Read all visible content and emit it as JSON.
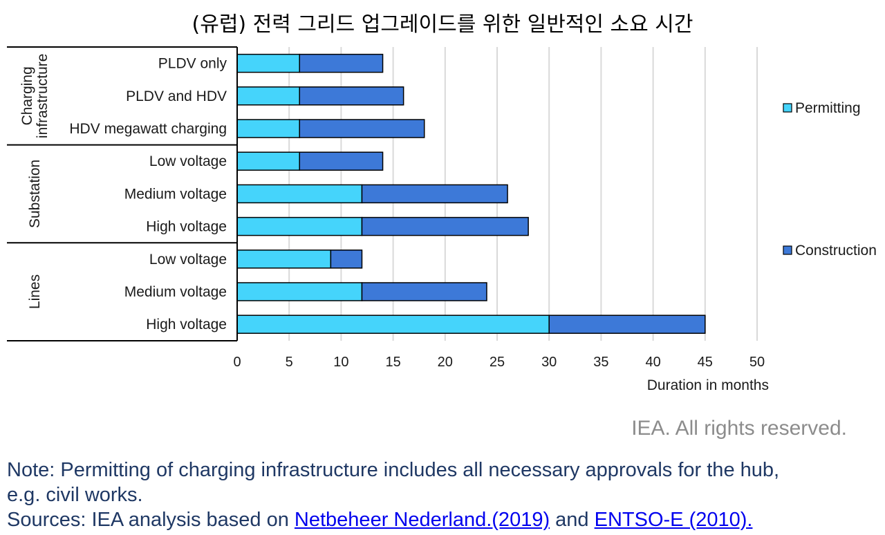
{
  "chart_data": {
    "type": "bar",
    "orientation": "horizontal",
    "stacked": true,
    "title": "(유럽) 전력 그리드 업그레이드를 위한 일반적인 소요 시간",
    "xlabel": "Duration in months",
    "xlim": [
      0,
      50
    ],
    "xticks": [
      0,
      5,
      10,
      15,
      20,
      25,
      30,
      35,
      40,
      45,
      50
    ],
    "grid": "vertical",
    "legend_position": "right",
    "groups": [
      {
        "name": "Charging infrastructure",
        "name_lines": [
          "Charging",
          "infrastructure"
        ],
        "categories": [
          "PLDV only",
          "PLDV and HDV",
          "HDV megawatt charging"
        ]
      },
      {
        "name": "Substation",
        "name_lines": [
          "Substation"
        ],
        "categories": [
          "Low voltage",
          "Medium voltage",
          "High voltage"
        ]
      },
      {
        "name": "Lines",
        "name_lines": [
          "Lines"
        ],
        "categories": [
          "Low voltage",
          "Medium voltage",
          "High voltage"
        ]
      }
    ],
    "series": [
      {
        "name": "Permitting",
        "color": "#45d4fb",
        "values": [
          6,
          6,
          6,
          6,
          12,
          12,
          9,
          12,
          30
        ]
      },
      {
        "name": "Construction",
        "color": "#3d79d8",
        "values": [
          8,
          10,
          12,
          8,
          14,
          16,
          3,
          12,
          15
        ]
      }
    ]
  },
  "footer": {
    "credit": "IEA. All rights reserved.",
    "note_line1": "Note: Permitting of charging infrastructure includes all necessary approvals for the hub,",
    "note_line2": "e.g. civil works.",
    "sources_prefix": "Sources: IEA analysis based on ",
    "source_link1": "Netbeheer Nederland.(2019)",
    "sources_and": " and ",
    "source_link2": "ENTSO-E (2010)."
  }
}
